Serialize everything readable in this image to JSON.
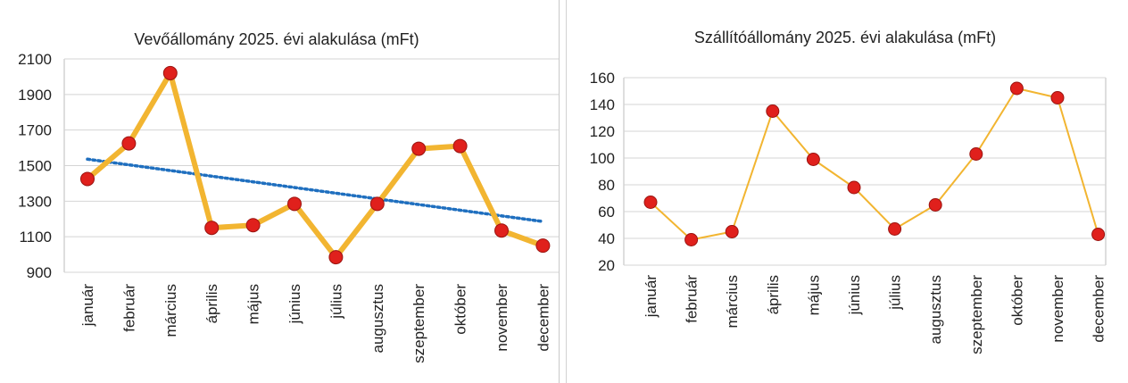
{
  "chart_data": [
    {
      "type": "line",
      "title": "Vevőállomány 2025. évi alakulása (mFt)",
      "xlabel": "",
      "ylabel": "",
      "categories": [
        "január",
        "február",
        "március",
        "április",
        "május",
        "június",
        "július",
        "augusztus",
        "szeptember",
        "október",
        "november",
        "december"
      ],
      "series": [
        {
          "values": [
            1425,
            1625,
            2020,
            1150,
            1165,
            1285,
            985,
            1285,
            1595,
            1610,
            1135,
            1050
          ]
        }
      ],
      "trendline": {
        "type": "linear",
        "style": "dotted",
        "color": "#1f6fbf"
      },
      "ylim": [
        900,
        2100
      ],
      "yticks": [
        900,
        1100,
        1300,
        1500,
        1700,
        1900,
        2100
      ],
      "grid": true,
      "legend": "none",
      "line_color": "#f2b531",
      "marker_color": "#e0201c"
    },
    {
      "type": "line",
      "title": "Szállítóállomány 2025. évi alakulása (mFt)",
      "xlabel": "",
      "ylabel": "",
      "categories": [
        "január",
        "február",
        "március",
        "április",
        "május",
        "június",
        "július",
        "augusztus",
        "szeptember",
        "október",
        "november",
        "december"
      ],
      "series": [
        {
          "values": [
            67,
            39,
            45,
            135,
            99,
            78,
            47,
            65,
            103,
            152,
            145,
            43
          ]
        }
      ],
      "ylim": [
        20,
        160
      ],
      "yticks": [
        20,
        40,
        60,
        80,
        100,
        120,
        140,
        160
      ],
      "grid": true,
      "legend": "none",
      "line_color": "#f2b531",
      "marker_color": "#e0201c"
    }
  ]
}
